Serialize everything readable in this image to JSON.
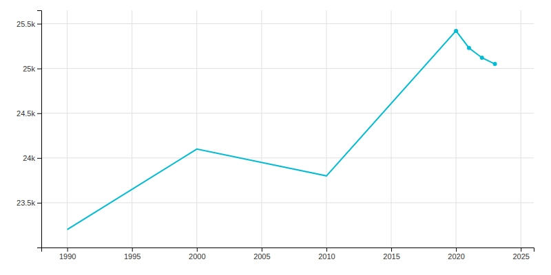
{
  "chart_data": {
    "type": "line",
    "x": [
      1990,
      2000,
      2010,
      2020,
      2021,
      2022,
      2023
    ],
    "series": [
      {
        "type": "line",
        "color": "#00BCD4",
        "values": [
          23200,
          24100,
          23800,
          25420,
          25230,
          25120,
          25050
        ]
      },
      {
        "type": "scatter",
        "color": "#00BCD4",
        "values": [
          null,
          null,
          null,
          25420,
          25230,
          25120,
          25050
        ]
      }
    ],
    "xlim": [
      1988,
      2026
    ],
    "xticks": [
      1990,
      1995,
      2000,
      2005,
      2010,
      2015,
      2020,
      2025
    ],
    "ylim": [
      23000,
      25650
    ],
    "yticks": [
      {
        "value": 23500,
        "label": "23.5k"
      },
      {
        "value": 24000,
        "label": "24k"
      },
      {
        "value": 24500,
        "label": "24.5k"
      },
      {
        "value": 25000,
        "label": "25k"
      },
      {
        "value": 25500,
        "label": "25.5k"
      }
    ],
    "grid": true
  }
}
